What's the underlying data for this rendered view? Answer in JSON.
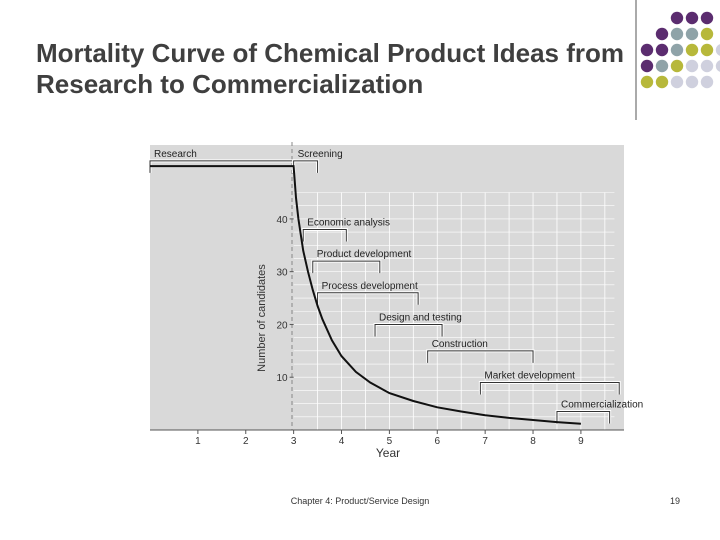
{
  "slide": {
    "title_line1": "Mortality Curve of Chemical Product Ideas from",
    "title_line2": "Research to Commercialization",
    "footer": "Chapter 4: Product/Service Design",
    "page_number": "19"
  },
  "decoration": {
    "dot_colors": [
      "#5b2c6f",
      "#8fa3a8",
      "#b7b83a",
      "#cfd0de"
    ]
  },
  "chart_data": {
    "type": "line",
    "title": "",
    "xlabel": "Year",
    "ylabel": "Number of candidates",
    "xlim": [
      0,
      9.9
    ],
    "ylim": [
      0,
      54
    ],
    "x_ticks": [
      1,
      2,
      3,
      4,
      5,
      6,
      7,
      8,
      9
    ],
    "x_tick_labels": [
      "1",
      "2",
      "3",
      "4",
      "5",
      "6",
      "7",
      "8",
      "9"
    ],
    "y_ticks": [
      10,
      20,
      30,
      40
    ],
    "y_tick_labels": [
      "10",
      "20",
      "30",
      "40"
    ],
    "grid": true,
    "background_color": "#d9d9d9",
    "series": [
      {
        "x": [
          0,
          3.0,
          3.05,
          3.1,
          3.2,
          3.3,
          3.4,
          3.5,
          3.6,
          3.8,
          4.0,
          4.3,
          4.6,
          5.0,
          5.5,
          6.0,
          6.5,
          7.0,
          7.5,
          8.0,
          8.5,
          9.0
        ],
        "y": [
          50,
          50,
          44,
          40,
          34,
          30,
          26.5,
          23.5,
          21,
          17,
          14,
          11,
          9,
          7,
          5.5,
          4.3,
          3.5,
          2.8,
          2.3,
          1.9,
          1.5,
          1.2
        ]
      }
    ],
    "stages": [
      {
        "label": "Research",
        "start": 0,
        "end": 3.0,
        "height": 51
      },
      {
        "label": "Screening",
        "start": 3.0,
        "end": 3.5,
        "height": 51
      },
      {
        "label": "Economic analysis",
        "start": 3.2,
        "end": 4.1,
        "height": 38
      },
      {
        "label": "Product development",
        "start": 3.4,
        "end": 4.8,
        "height": 32
      },
      {
        "label": "Process development",
        "start": 3.5,
        "end": 5.6,
        "height": 26
      },
      {
        "label": "Design and testing",
        "start": 4.7,
        "end": 6.1,
        "height": 20
      },
      {
        "label": "Construction",
        "start": 5.8,
        "end": 8.0,
        "height": 15
      },
      {
        "label": "Market development",
        "start": 6.9,
        "end": 9.8,
        "height": 9
      },
      {
        "label": "Commercialization",
        "start": 8.5,
        "end": 9.6,
        "height": 3.5
      }
    ]
  }
}
